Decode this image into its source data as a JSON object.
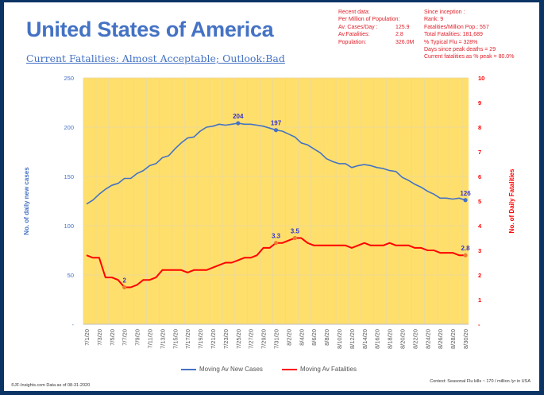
{
  "header": {
    "title": "United States of America",
    "subtitle": "Current Fatalities: Almost Acceptable; Outlook:Bad"
  },
  "recent_data": {
    "heading": "Recent data:",
    "subheading": "Per Million of Population:",
    "rows": [
      {
        "label": "Av. Cases/Day :",
        "value": "125.9"
      },
      {
        "label": "Av.Fatalities:",
        "value": "2.8"
      },
      {
        "label": "Population:",
        "value": "326.0M"
      }
    ]
  },
  "since_inception": {
    "lines": [
      "Since inception :",
      "Rank: 9",
      "Fatalities/Million Pop.: 557",
      "Total Fatalities: 181,689",
      "% Typical Flu = 328%",
      "Days since peak deaths = 29",
      "Current fatalities as % peak = 80.0%"
    ]
  },
  "footer": {
    "left": "©JF-Insights.com  Data as of 08-31-2020",
    "right": "Context: Seasonal Flu kills ~ 170 / million /yr in USA"
  },
  "colors": {
    "cases": "#4472c4",
    "fatalities": "#ff0000",
    "plot_bg": "#ffdf6b",
    "marker_fat": "#ed7d31",
    "data_label": "#3333cc",
    "border": "#0b3364"
  },
  "chart_data": {
    "type": "line",
    "title": "United States of America",
    "x": [
      "7/1/20",
      "7/2/20",
      "7/3/20",
      "7/4/20",
      "7/5/20",
      "7/6/20",
      "7/7/20",
      "7/8/20",
      "7/9/20",
      "7/10/20",
      "7/11/20",
      "7/12/20",
      "7/13/20",
      "7/14/20",
      "7/15/20",
      "7/16/20",
      "7/17/20",
      "7/18/20",
      "7/19/20",
      "7/20/20",
      "7/21/20",
      "7/22/20",
      "7/23/20",
      "7/24/20",
      "7/25/20",
      "7/26/20",
      "7/27/20",
      "7/28/20",
      "7/29/20",
      "7/30/20",
      "7/31/20",
      "8/1/20",
      "8/2/20",
      "8/3/20",
      "8/4/20",
      "8/5/20",
      "8/6/20",
      "8/7/20",
      "8/8/20",
      "8/9/20",
      "8/10/20",
      "8/11/20",
      "8/12/20",
      "8/13/20",
      "8/14/20",
      "8/15/20",
      "8/16/20",
      "8/17/20",
      "8/18/20",
      "8/19/20",
      "8/20/20",
      "8/21/20",
      "8/22/20",
      "8/23/20",
      "8/24/20",
      "8/25/20",
      "8/26/20",
      "8/27/20",
      "8/28/20",
      "8/29/20",
      "8/30/20"
    ],
    "tick_labels": [
      "7/1/20",
      "7/3/20",
      "7/5/20",
      "7/7/20",
      "7/9/20",
      "7/11/20",
      "7/13/20",
      "7/15/20",
      "7/17/20",
      "7/19/20",
      "7/21/20",
      "7/23/20",
      "7/25/20",
      "7/27/20",
      "7/29/20",
      "7/31/20",
      "8/2/20",
      "8/4/20",
      "8/6/20",
      "8/8/20",
      "8/10/20",
      "8/12/20",
      "8/14/20",
      "8/16/20",
      "8/18/20",
      "8/20/20",
      "8/22/20",
      "8/24/20",
      "8/26/20",
      "8/28/20",
      "8/30/20"
    ],
    "series": [
      {
        "name": "Moving Av New Cases",
        "axis": "left",
        "values": [
          122,
          126,
          132,
          137,
          141,
          143,
          148,
          148,
          153,
          156,
          161,
          163,
          169,
          171,
          178,
          184,
          189,
          190,
          196,
          200,
          201,
          203,
          202,
          203,
          204,
          203,
          203,
          202,
          201,
          199,
          197,
          196,
          193,
          190,
          184,
          182,
          178,
          174,
          168,
          165,
          163,
          163,
          159,
          161,
          162,
          161,
          159,
          158,
          156,
          155,
          149,
          146,
          142,
          139,
          135,
          132,
          128,
          128,
          127,
          128,
          126
        ],
        "labels": [
          {
            "index": 24,
            "text": "204"
          },
          {
            "index": 30,
            "text": "197"
          },
          {
            "index": 60,
            "text": "126"
          }
        ]
      },
      {
        "name": "Moving Av Fatalities",
        "axis": "right",
        "values": [
          2.8,
          2.7,
          2.7,
          1.9,
          1.9,
          1.8,
          1.5,
          1.5,
          1.6,
          1.8,
          1.8,
          1.9,
          2.2,
          2.2,
          2.2,
          2.2,
          2.1,
          2.2,
          2.2,
          2.2,
          2.3,
          2.4,
          2.5,
          2.5,
          2.6,
          2.7,
          2.7,
          2.8,
          3.1,
          3.1,
          3.3,
          3.3,
          3.4,
          3.5,
          3.5,
          3.3,
          3.2,
          3.2,
          3.2,
          3.2,
          3.2,
          3.2,
          3.1,
          3.2,
          3.3,
          3.2,
          3.2,
          3.2,
          3.3,
          3.2,
          3.2,
          3.2,
          3.1,
          3.1,
          3.0,
          3.0,
          2.9,
          2.9,
          2.9,
          2.8,
          2.8
        ],
        "labels": [
          {
            "index": 6,
            "text": "2"
          },
          {
            "index": 30,
            "text": "3.3"
          },
          {
            "index": 33,
            "text": "3.5"
          },
          {
            "index": 60,
            "text": "2.8"
          }
        ]
      }
    ],
    "y_left": {
      "label": "No. of daily new  cases",
      "range": [
        0,
        250
      ],
      "ticks": [
        "-",
        "50",
        "100",
        "150",
        "200",
        "250"
      ]
    },
    "y_right": {
      "label": "No. of Daily Fatalities",
      "range": [
        0,
        10
      ],
      "ticks": [
        "-",
        "1",
        "2",
        "3",
        "4",
        "5",
        "6",
        "7",
        "8",
        "9",
        "10"
      ]
    },
    "grid": true,
    "legend_position": "bottom"
  }
}
